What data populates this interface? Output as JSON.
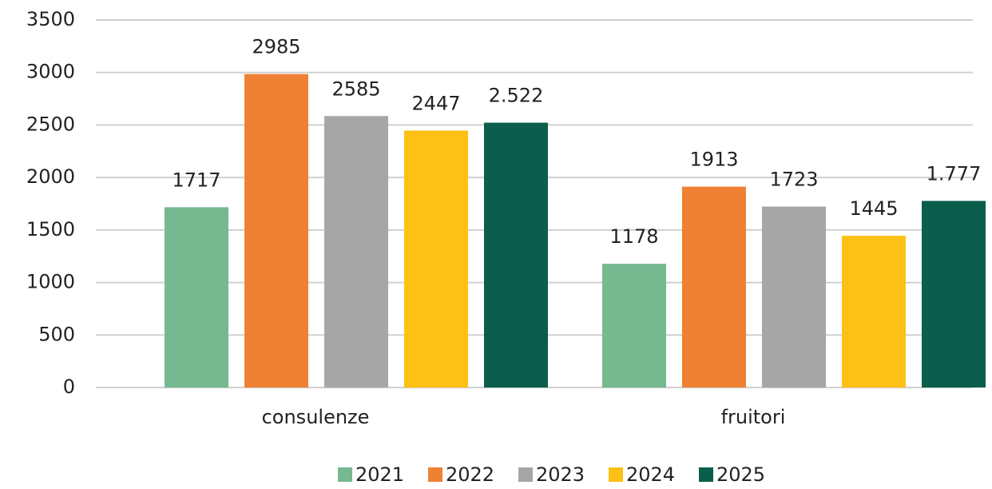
{
  "chart_data": {
    "type": "bar",
    "categories": [
      "consulenze",
      "fruitori"
    ],
    "series": [
      {
        "name": "2021",
        "color": "#76b890",
        "values": [
          1717,
          1178
        ]
      },
      {
        "name": "2022",
        "color": "#ee8133",
        "values": [
          2985,
          1913
        ]
      },
      {
        "name": "2023",
        "color": "#a6a6a6",
        "values": [
          2585,
          1723
        ]
      },
      {
        "name": "2024",
        "color": "#fcc114",
        "values": [
          2447,
          1445
        ]
      },
      {
        "name": "2025",
        "color": "#0b5e4b",
        "values": [
          2522,
          1777
        ],
        "value_labels": [
          "2.522",
          "1.777"
        ]
      }
    ],
    "ylim": [
      0,
      3500
    ],
    "yticks": [
      0,
      500,
      1000,
      1500,
      2000,
      2500,
      3000,
      3500
    ],
    "grid": true,
    "legend": "bottom"
  }
}
